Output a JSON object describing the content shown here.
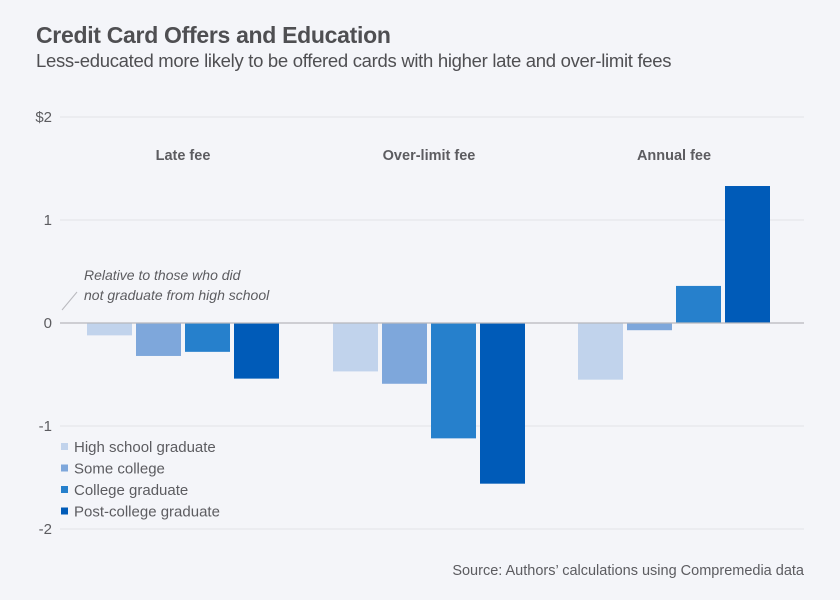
{
  "header": {
    "title": "Credit Card Offers and Education",
    "subtitle": "Less-educated more likely to be offered cards with higher late and over-limit fees"
  },
  "chart_data": {
    "type": "bar",
    "title": "Credit Card Offers and Education",
    "subtitle": "Less-educated more likely to be offered cards with higher late and over-limit fees",
    "xlabel": "",
    "ylabel": "",
    "categories": [
      "Late fee",
      "Over-limit fee",
      "Annual fee"
    ],
    "series": [
      {
        "name": "High school graduate",
        "color": "#c1d3ec",
        "values": [
          -0.12,
          -0.47,
          -0.55
        ]
      },
      {
        "name": "Some college",
        "color": "#7ea7db",
        "values": [
          -0.32,
          -0.59,
          -0.07
        ]
      },
      {
        "name": "College graduate",
        "color": "#2680cc",
        "values": [
          -0.28,
          -1.12,
          0.36
        ]
      },
      {
        "name": "Post-college graduate",
        "color": "#005bb8",
        "values": [
          -0.54,
          -1.56,
          1.33
        ]
      }
    ],
    "ylim": [
      -2,
      2
    ],
    "yticks": [
      2,
      1,
      0,
      -1,
      -2
    ],
    "ytick_labels": [
      "$2",
      "1",
      "0",
      "-1",
      "-2"
    ],
    "grid": true,
    "legend_position": "bottom-left",
    "annotation": [
      "Relative to those who did",
      "not graduate from high school"
    ],
    "source": "Source: Authors’ calculations using Compremedia data"
  }
}
